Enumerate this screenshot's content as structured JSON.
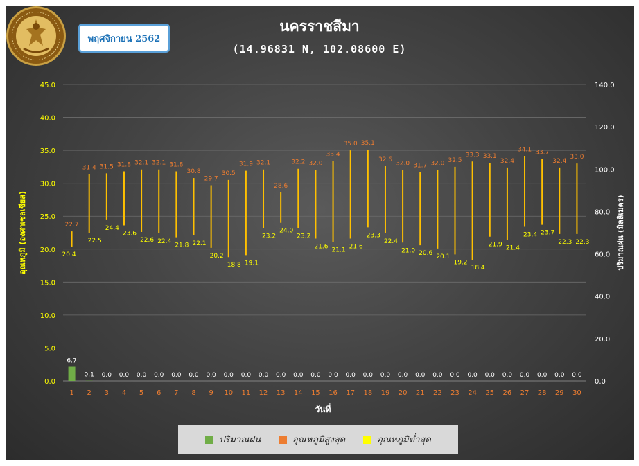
{
  "header": {
    "month_label": "พฤศจิกายน 2562",
    "title": "นครราชสีมา",
    "subtitle": "(14.96831 N, 102.08600 E)"
  },
  "logo": {
    "name": "meteorological-department-seal",
    "ring_text": "METEOROLOGICAL DEPARTMENT"
  },
  "legend": {
    "items": [
      {
        "label": "ปริมาณฝน",
        "color": "#70ad47"
      },
      {
        "label": "อุณหภูมิสูงสุด",
        "color": "#ed7d31"
      },
      {
        "label": "อุณหภูมิต่ำสุด",
        "color": "#ffff00"
      }
    ]
  },
  "chart_data": {
    "type": "bar",
    "xlabel": "วันที่",
    "ylabel_left": "อุณหภูมิ (องศาเซลเซียส)",
    "ylabel_right": "ปริมาณฝน (มิลลิเมตร)",
    "ylim_left": [
      0,
      45
    ],
    "ylim_right": [
      0,
      140
    ],
    "yticks_left": [
      "0.0",
      "5.0",
      "10.0",
      "15.0",
      "20.0",
      "25.0",
      "30.0",
      "35.0",
      "40.0",
      "45.0"
    ],
    "yticks_right": [
      "0.0",
      "20.0",
      "40.0",
      "60.0",
      "80.0",
      "100.0",
      "120.0",
      "140.0"
    ],
    "categories": [
      "1",
      "2",
      "3",
      "4",
      "5",
      "6",
      "7",
      "8",
      "9",
      "10",
      "11",
      "12",
      "13",
      "14",
      "15",
      "16",
      "17",
      "18",
      "19",
      "20",
      "21",
      "22",
      "23",
      "24",
      "25",
      "26",
      "27",
      "28",
      "29",
      "30"
    ],
    "grid": true,
    "legend_position": "bottom",
    "series": [
      {
        "name": "ปริมาณฝน",
        "axis": "right",
        "color": "#70ad47",
        "values": [
          6.7,
          0.1,
          0.0,
          0.0,
          0.0,
          0.0,
          0.0,
          0.0,
          0.0,
          0.0,
          0.0,
          0.0,
          0.0,
          0.0,
          0.0,
          0.0,
          0.0,
          0.0,
          0.0,
          0.0,
          0.0,
          0.0,
          0.0,
          0.0,
          0.0,
          0.0,
          0.0,
          0.0,
          0.0,
          0.0
        ]
      },
      {
        "name": "อุณหภูมิสูงสุด",
        "axis": "left",
        "color": "#ed7d31",
        "values": [
          22.7,
          31.4,
          31.5,
          31.8,
          32.1,
          32.1,
          31.8,
          30.8,
          29.7,
          30.5,
          31.9,
          32.1,
          28.6,
          32.2,
          32.0,
          33.4,
          35.0,
          35.1,
          32.6,
          32.0,
          31.7,
          32.0,
          32.5,
          33.3,
          33.1,
          32.4,
          34.1,
          33.7,
          32.4,
          33.0
        ]
      },
      {
        "name": "อุณหภูมิต่ำสุด",
        "axis": "left",
        "color": "#ffff00",
        "values": [
          20.4,
          22.5,
          24.4,
          23.6,
          22.6,
          22.4,
          21.8,
          22.1,
          20.2,
          18.8,
          19.1,
          23.2,
          24.0,
          23.2,
          21.6,
          21.1,
          21.6,
          23.3,
          22.4,
          21.0,
          20.6,
          20.1,
          19.2,
          18.4,
          21.9,
          21.4,
          23.4,
          23.7,
          22.3,
          22.3
        ]
      }
    ]
  }
}
